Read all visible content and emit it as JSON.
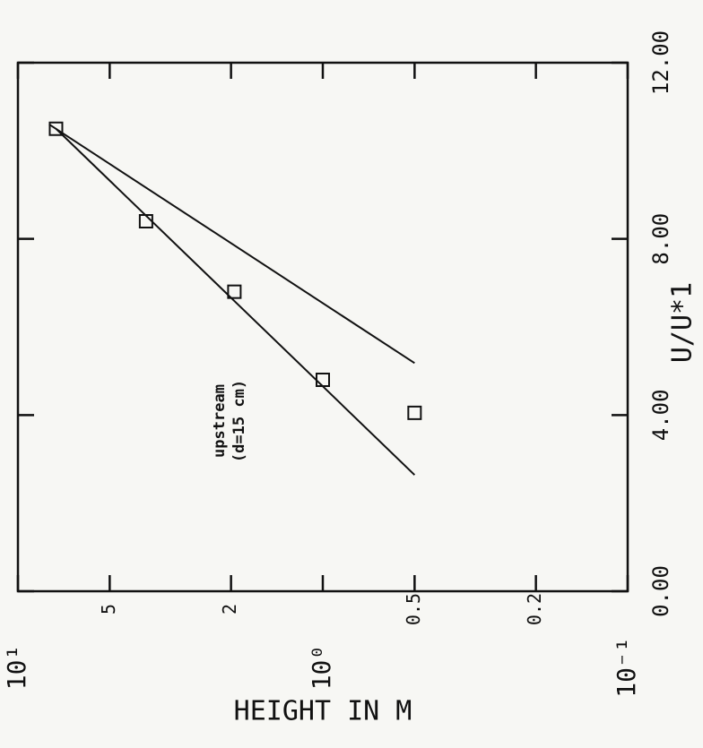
{
  "chart_data": {
    "type": "scatter",
    "annotation": [
      "upstream",
      "(d=15 cm)"
    ],
    "xlabel": "U/U*1",
    "ylabel": "HEIGHT IN M",
    "xlim": [
      0,
      12
    ],
    "xticks": [
      {
        "value": 0,
        "label": "0.00"
      },
      {
        "value": 4,
        "label": "4.00"
      },
      {
        "value": 8,
        "label": "8.00"
      },
      {
        "value": 12,
        "label": "12.00"
      }
    ],
    "ylim": [
      0.1,
      10
    ],
    "yscale": "log",
    "yticks": [
      {
        "value": 0.1,
        "label": "10⁻¹"
      },
      0.2,
      0.5,
      {
        "value": 1,
        "label": "10⁰"
      },
      2,
      5,
      {
        "value": 10,
        "label": "10¹"
      }
    ],
    "color": "#111111",
    "points": {
      "x": [
        10.5,
        8.4,
        6.8,
        4.8,
        4.05
      ],
      "y": [
        7.5,
        3.8,
        1.95,
        1.0,
        0.5
      ]
    },
    "lines": [
      {
        "x": [
          10.5,
          2.64
        ],
        "y": [
          7.5,
          0.5
        ]
      },
      {
        "x": [
          10.6,
          5.18
        ],
        "y": [
          7.9,
          0.5
        ]
      }
    ]
  }
}
